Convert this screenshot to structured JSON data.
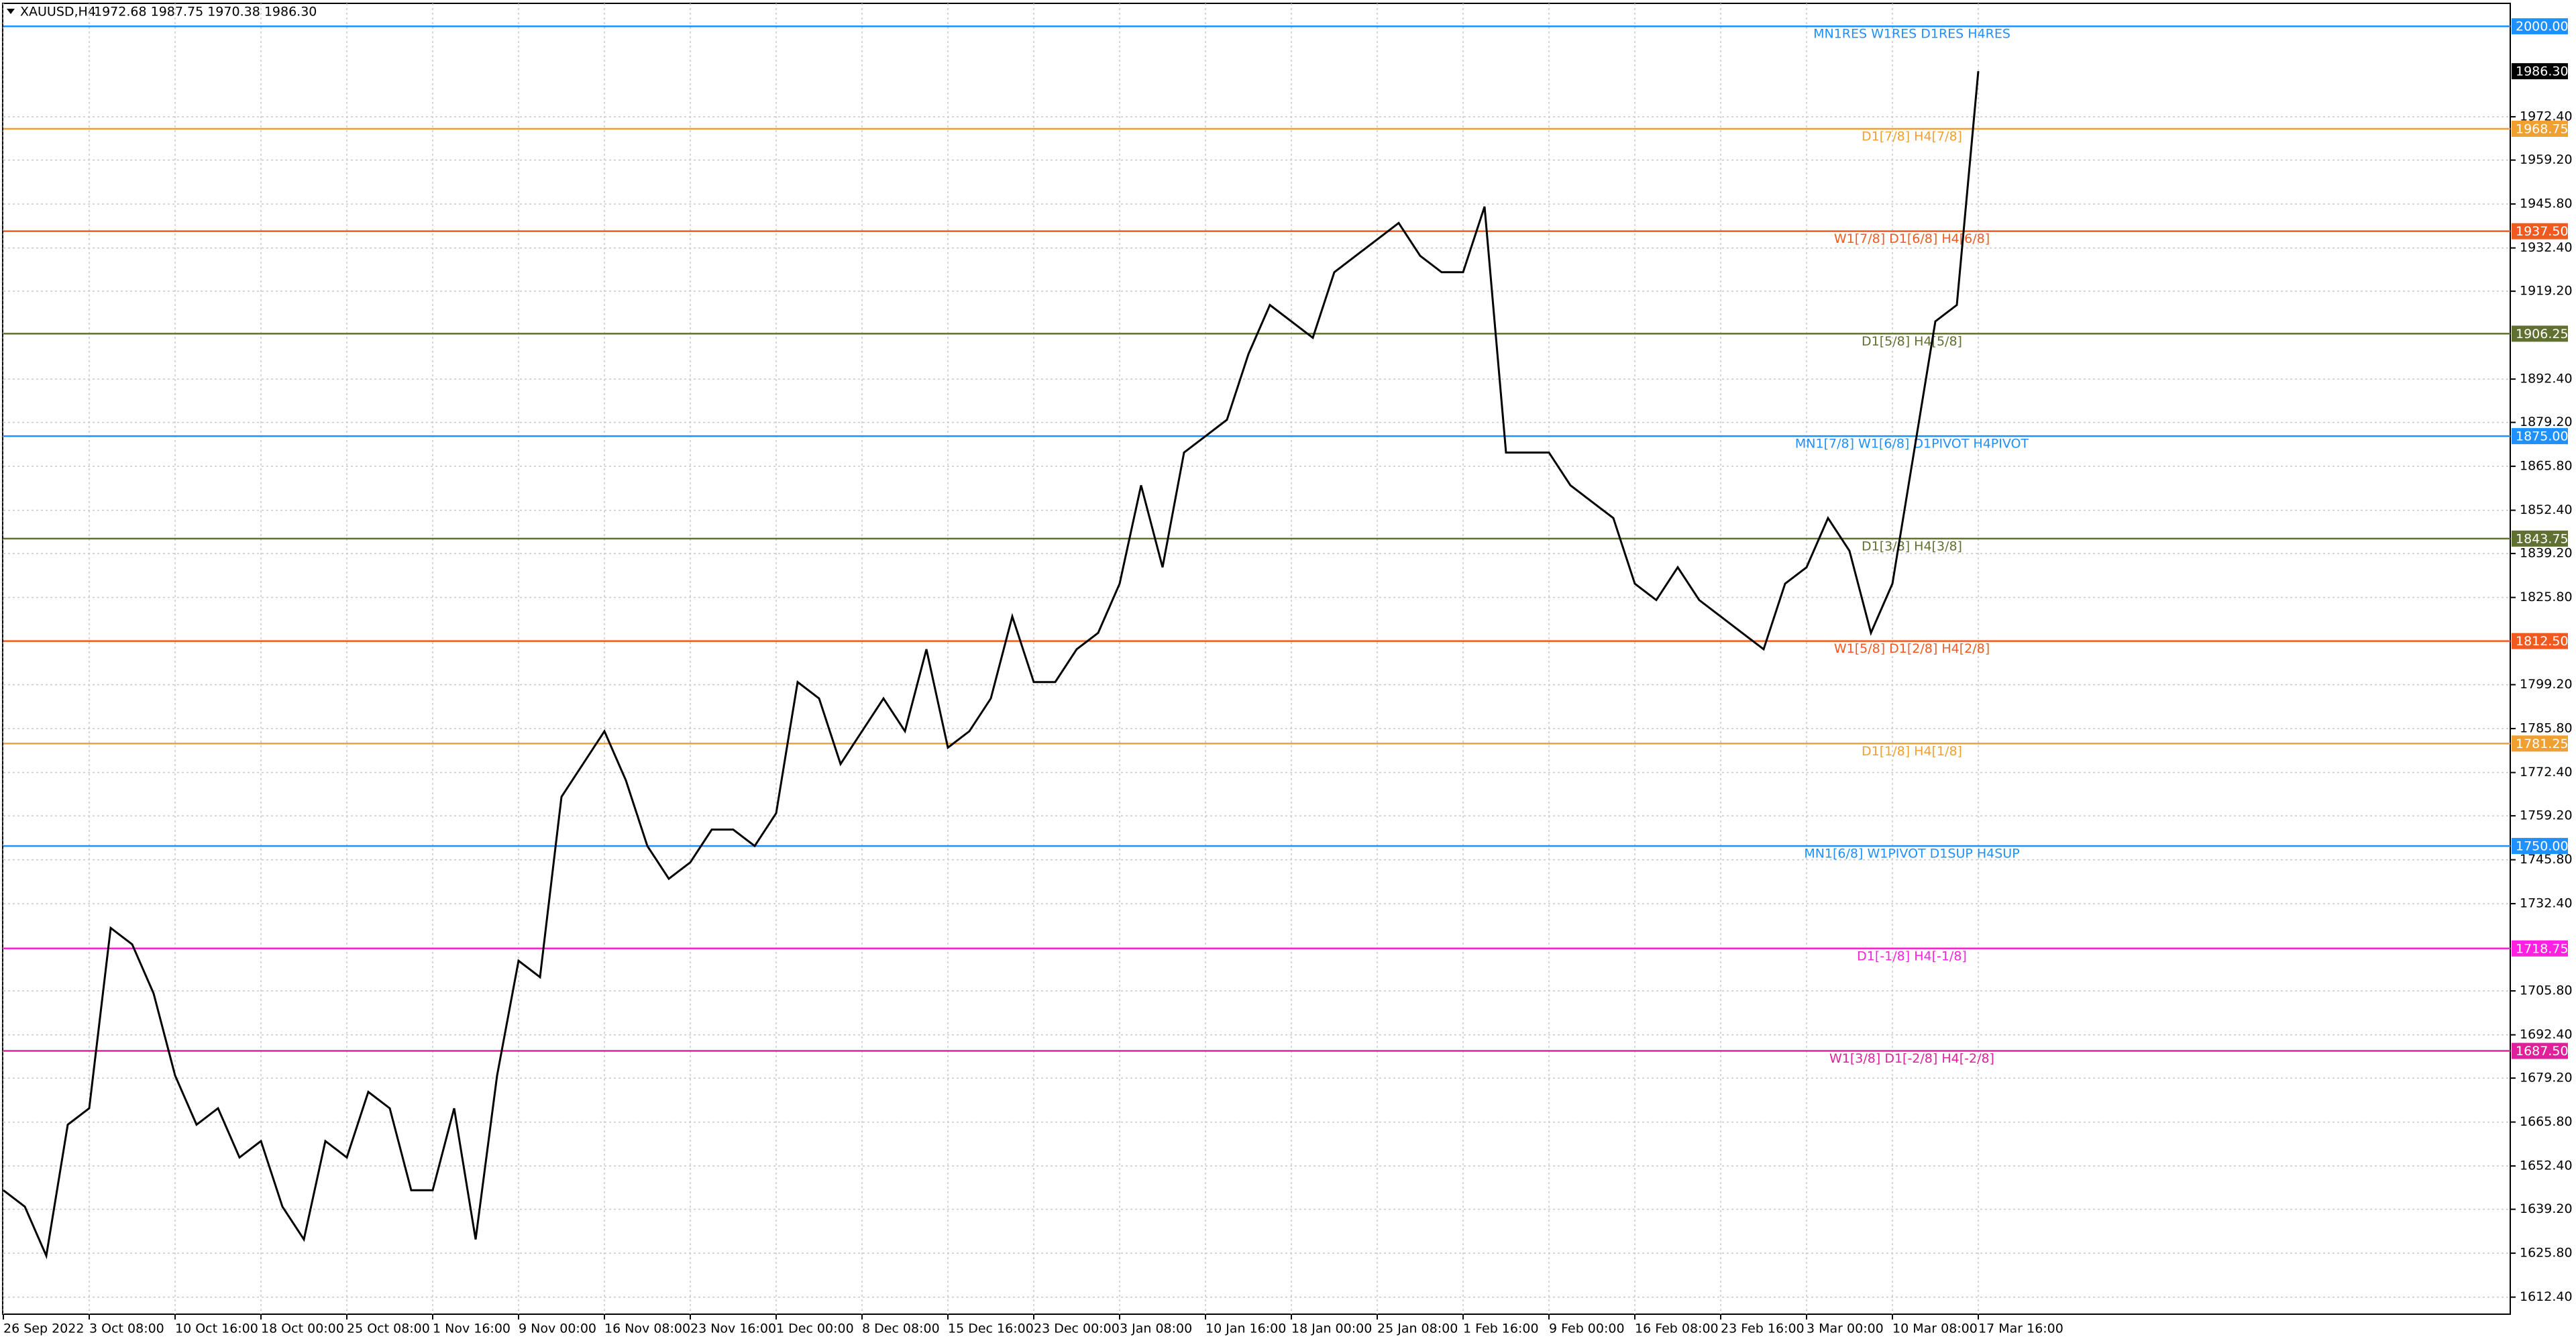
{
  "header": {
    "symbol": "XAUUSD,H4",
    "ohlc": "1972.68 1987.75 1970.38 1986.30"
  },
  "chart_data": {
    "type": "line",
    "color": "#000000",
    "grid": true,
    "categories": [
      "26 Sep 2022",
      null,
      null,
      null,
      "3 Oct 08:00",
      null,
      null,
      null,
      "10 Oct 16:00",
      null,
      null,
      null,
      "18 Oct 00:00",
      null,
      null,
      null,
      "25 Oct 08:00",
      null,
      null,
      null,
      "1 Nov 16:00",
      null,
      null,
      null,
      "9 Nov 00:00",
      null,
      null,
      null,
      "16 Nov 08:00",
      null,
      null,
      null,
      "23 Nov 16:00",
      null,
      null,
      null,
      "1 Dec 00:00",
      null,
      null,
      null,
      "8 Dec 08:00",
      null,
      null,
      null,
      "15 Dec 16:00",
      null,
      null,
      null,
      "23 Dec 00:00",
      null,
      null,
      null,
      "3 Jan 08:00",
      null,
      null,
      null,
      "10 Jan 16:00",
      null,
      null,
      null,
      "18 Jan 00:00",
      null,
      null,
      null,
      "25 Jan 08:00",
      null,
      null,
      null,
      "1 Feb 16:00",
      null,
      null,
      null,
      "9 Feb 00:00",
      null,
      null,
      null,
      "16 Feb 08:00",
      null,
      null,
      null,
      "23 Feb 16:00",
      null,
      null,
      null,
      "3 Mar 00:00",
      null,
      null,
      null,
      "10 Mar 08:00",
      null,
      null,
      null,
      "17 Mar 16:00"
    ],
    "values": [
      1645,
      1640,
      1625,
      1665,
      1670,
      1725,
      1720,
      1705,
      1680,
      1665,
      1670,
      1655,
      1660,
      1640,
      1630,
      1660,
      1655,
      1675,
      1670,
      1645,
      1645,
      1670,
      1630,
      1680,
      1715,
      1710,
      1765,
      1775,
      1785,
      1770,
      1750,
      1740,
      1745,
      1755,
      1755,
      1750,
      1760,
      1800,
      1795,
      1775,
      1785,
      1795,
      1785,
      1810,
      1780,
      1785,
      1795,
      1820,
      1800,
      1800,
      1810,
      1815,
      1830,
      1860,
      1835,
      1870,
      1875,
      1880,
      1900,
      1915,
      1910,
      1905,
      1925,
      1930,
      1935,
      1940,
      1930,
      1925,
      1925,
      1945,
      1870,
      1870,
      1870,
      1860,
      1855,
      1850,
      1830,
      1825,
      1835,
      1825,
      1820,
      1815,
      1810,
      1830,
      1835,
      1850,
      1840,
      1815,
      1830,
      1870,
      1910,
      1915,
      1986.3
    ],
    "last_price": 1986.3,
    "last_price_label": "1986.30",
    "ylim": [
      1607.2,
      2007
    ],
    "yticks": [
      {
        "value": 1612.4,
        "label": "1612.40"
      },
      {
        "value": 1625.8,
        "label": "1625.80"
      },
      {
        "value": 1639.2,
        "label": "1639.20"
      },
      {
        "value": 1652.4,
        "label": "1652.40"
      },
      {
        "value": 1665.8,
        "label": "1665.80"
      },
      {
        "value": 1679.2,
        "label": "1679.20"
      },
      {
        "value": 1692.4,
        "label": "1692.40"
      },
      {
        "value": 1705.8,
        "label": "1705.80"
      },
      {
        "value": 1732.4,
        "label": "1732.40"
      },
      {
        "value": 1745.8,
        "label": "1745.80"
      },
      {
        "value": 1759.2,
        "label": "1759.20"
      },
      {
        "value": 1772.4,
        "label": "1772.40"
      },
      {
        "value": 1785.8,
        "label": "1785.80"
      },
      {
        "value": 1799.2,
        "label": "1799.20"
      },
      {
        "value": 1825.8,
        "label": "1825.80"
      },
      {
        "value": 1839.2,
        "label": "1839.20"
      },
      {
        "value": 1852.4,
        "label": "1852.40"
      },
      {
        "value": 1865.8,
        "label": "1865.80"
      },
      {
        "value": 1879.2,
        "label": "1879.20"
      },
      {
        "value": 1892.4,
        "label": "1892.40"
      },
      {
        "value": 1919.2,
        "label": "1919.20"
      },
      {
        "value": 1932.4,
        "label": "1932.40"
      },
      {
        "value": 1945.8,
        "label": "1945.80"
      },
      {
        "value": 1959.2,
        "label": "1959.20"
      },
      {
        "value": 1972.4,
        "label": "1972.40"
      }
    ],
    "levels": [
      {
        "value": 2000,
        "label": "2000.00",
        "text": "MN1RES W1RES D1RES H4RES",
        "color": "#1e90ff"
      },
      {
        "value": 1968.75,
        "label": "1968.75",
        "text": "D1[7/8] H4[7/8]",
        "color": "#f0a030"
      },
      {
        "value": 1937.5,
        "label": "1937.50",
        "text": "W1[7/8] D1[6/8] H4[6/8]",
        "color": "#f05a20"
      },
      {
        "value": 1906.25,
        "label": "1906.25",
        "text": "D1[5/8] H4[5/8]",
        "color": "#607030"
      },
      {
        "value": 1875,
        "label": "1875.00",
        "text": "MN1[7/8] W1[6/8] D1PIVOT H4PIVOT",
        "color": "#1e90ff"
      },
      {
        "value": 1843.75,
        "label": "1843.75",
        "text": "D1[3/8] H4[3/8]",
        "color": "#607030"
      },
      {
        "value": 1812.5,
        "label": "1812.50",
        "text": "W1[5/8] D1[2/8] H4[2/8]",
        "color": "#f05a20"
      },
      {
        "value": 1781.25,
        "label": "1781.25",
        "text": "D1[1/8] H4[1/8]",
        "color": "#f0a030"
      },
      {
        "value": 1750,
        "label": "1750.00",
        "text": "MN1[6/8] W1PIVOT D1SUP H4SUP",
        "color": "#1e90ff"
      },
      {
        "value": 1718.75,
        "label": "1718.75",
        "text": "D1[-1/8] H4[-1/8]",
        "color": "#ff20e0"
      },
      {
        "value": 1687.5,
        "label": "1687.50",
        "text": "W1[3/8] D1[-2/8] H4[-2/8]",
        "color": "#e0209a"
      }
    ]
  }
}
